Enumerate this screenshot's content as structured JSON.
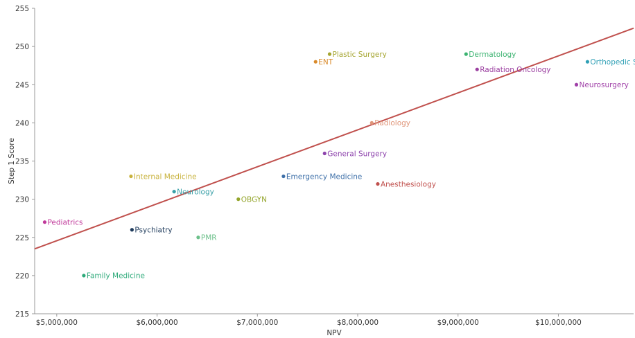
{
  "chart_data": {
    "type": "scatter",
    "title": "",
    "xlabel": "NPV",
    "ylabel": "Step 1 Score",
    "xlim": [
      4780000,
      10750000
    ],
    "ylim": [
      215,
      255
    ],
    "xticks": [
      5000000,
      6000000,
      7000000,
      8000000,
      9000000,
      10000000
    ],
    "xtick_labels": [
      "$5,000,000",
      "$6,000,000",
      "$7,000,000",
      "$8,000,000",
      "$9,000,000",
      "$10,000,000"
    ],
    "yticks": [
      215,
      220,
      225,
      230,
      235,
      240,
      245,
      250,
      255
    ],
    "ytick_labels": [
      "215",
      "220",
      "225",
      "230",
      "235",
      "240",
      "245",
      "250",
      "255"
    ],
    "grid": false,
    "legend": "none",
    "trendline": {
      "color": "#c0504d",
      "x": [
        4780000,
        10750000
      ],
      "y": [
        223.5,
        252.4
      ]
    },
    "points": [
      {
        "label": "Pediatrics",
        "x": 4880000,
        "y": 227,
        "color": "#c0399a"
      },
      {
        "label": "Family Medicine",
        "x": 5270000,
        "y": 220,
        "color": "#2eaa7a"
      },
      {
        "label": "Internal Medicine",
        "x": 5740000,
        "y": 233,
        "color": "#c8b23c"
      },
      {
        "label": "Psychiatry",
        "x": 5750000,
        "y": 226,
        "color": "#1f3b5c"
      },
      {
        "label": "Neurology",
        "x": 6170000,
        "y": 231,
        "color": "#3aa0a8"
      },
      {
        "label": "PMR",
        "x": 6410000,
        "y": 225,
        "color": "#6cc08a"
      },
      {
        "label": "OBGYN",
        "x": 6810000,
        "y": 230,
        "color": "#94a52c"
      },
      {
        "label": "Emergency Medicine",
        "x": 7260000,
        "y": 233,
        "color": "#3d6fa8"
      },
      {
        "label": "ENT",
        "x": 7580000,
        "y": 248,
        "color": "#d98a2a"
      },
      {
        "label": "Plastic Surgery",
        "x": 7720000,
        "y": 249,
        "color": "#a5a530"
      },
      {
        "label": "General Surgery",
        "x": 7670000,
        "y": 236,
        "color": "#8e44ad"
      },
      {
        "label": "Radiology",
        "x": 8140000,
        "y": 240,
        "color": "#e0967a"
      },
      {
        "label": "Anesthesiology",
        "x": 8200000,
        "y": 232,
        "color": "#c0504d"
      },
      {
        "label": "Dermatology",
        "x": 9080000,
        "y": 249,
        "color": "#3cb371"
      },
      {
        "label": "Radiation Oncology",
        "x": 9190000,
        "y": 247,
        "color": "#9b3fa0"
      },
      {
        "label": "Neurosurgery",
        "x": 10180000,
        "y": 245,
        "color": "#a040a8"
      },
      {
        "label": "Orthopedic Surgery",
        "x": 10290000,
        "y": 248,
        "color": "#2e9fb5"
      }
    ]
  }
}
